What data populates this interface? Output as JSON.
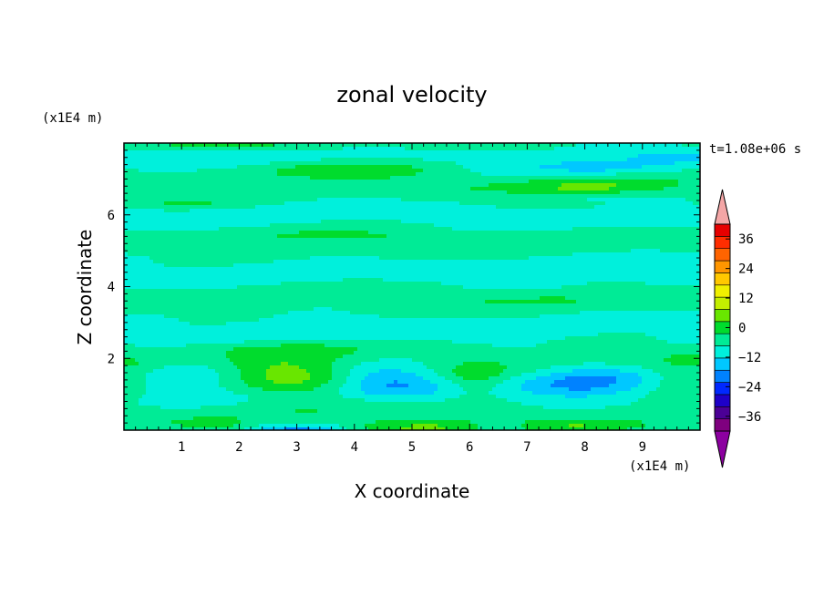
{
  "chart_data": {
    "type": "heatmap",
    "title": "zonal velocity",
    "xlabel": "X coordinate",
    "ylabel": "Z coordinate",
    "x_unit": "(x1E4 m)",
    "y_unit": "(x1E4 m)",
    "time_label": "t=1.08e+06 s",
    "xlim": [
      0,
      10
    ],
    "ylim": [
      0,
      8
    ],
    "x_ticks": [
      "1",
      "2",
      "3",
      "4",
      "5",
      "6",
      "7",
      "8",
      "9"
    ],
    "y_ticks": [
      "2",
      "4",
      "6"
    ],
    "colorbar": {
      "min": -42,
      "max": 42,
      "step": 6,
      "tick_labels": [
        "36",
        "24",
        "12",
        "0",
        "-12",
        "-24",
        "-36"
      ],
      "colors": [
        "#7f007f",
        "#4b0096",
        "#1e00c8",
        "#0028ff",
        "#0082ff",
        "#00c8ff",
        "#00f0dc",
        "#00eb96",
        "#00dc2d",
        "#69e600",
        "#c3ef00",
        "#f0f000",
        "#ffc800",
        "#ff9600",
        "#ff6400",
        "#ff2d00",
        "#e60000"
      ],
      "extend_low_color": "#8c00a0",
      "extend_high_color": "#f4a6a6"
    },
    "field_description": "zonal velocity field: alternating positive/negative bands, stronger near bottom boundary",
    "features": [
      {
        "x": 2.9,
        "z": 1.5,
        "value": 12
      },
      {
        "x": 4.6,
        "z": 1.4,
        "value": -10
      },
      {
        "x": 6.1,
        "z": 1.4,
        "value": 8
      },
      {
        "x": 8.0,
        "z": 1.4,
        "value": -10
      },
      {
        "x": 9.7,
        "z": 1.4,
        "value": 8
      },
      {
        "x": 0.2,
        "z": 1.4,
        "value": 8
      },
      {
        "x": 4.2,
        "z": 7.2,
        "value": 8
      },
      {
        "x": 8.2,
        "z": 6.8,
        "value": 8
      },
      {
        "x": 8.3,
        "z": 7.3,
        "value": -8
      },
      {
        "x": 5.0,
        "z": 0.15,
        "value": 10
      },
      {
        "x": 3.0,
        "z": 0.1,
        "value": -12
      },
      {
        "x": 8.0,
        "z": 0.15,
        "value": 10
      }
    ]
  }
}
